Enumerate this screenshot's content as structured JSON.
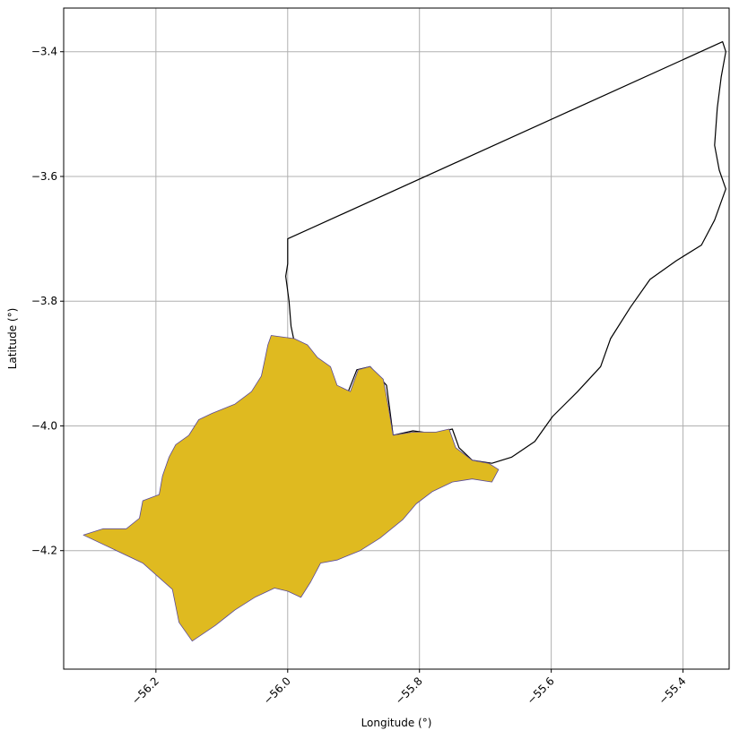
{
  "chart_data": {
    "type": "map",
    "xlabel": "Longitude (°)",
    "ylabel": "Latitude (°)",
    "xlim": [
      -56.34,
      -55.33
    ],
    "ylim": [
      -4.39,
      -3.33
    ],
    "x_ticks": [
      -56.2,
      -56.0,
      -55.8,
      -55.6,
      -55.4
    ],
    "x_tick_labels": [
      "−56.2",
      "−56.0",
      "−55.8",
      "−55.6",
      "−55.4"
    ],
    "y_ticks": [
      -3.4,
      -3.6,
      -3.8,
      -4.0,
      -4.2
    ],
    "y_tick_labels": [
      "−3.4",
      "−3.6",
      "−3.8",
      "−4.0",
      "−4.2"
    ],
    "grid": true,
    "colors": {
      "highlight_fill": "#dfba20",
      "highlight_edge": "#5a4a9a",
      "outline": "#000000",
      "grid": "#b0b0b0"
    },
    "regions": [
      {
        "id": "outlined-region",
        "fill": "none",
        "points": [
          [
            -56.0,
            -3.7
          ],
          [
            -55.34,
            -3.384
          ],
          [
            -55.335,
            -3.4
          ],
          [
            -55.342,
            -3.44
          ],
          [
            -55.348,
            -3.49
          ],
          [
            -55.352,
            -3.55
          ],
          [
            -55.345,
            -3.59
          ],
          [
            -55.335,
            -3.62
          ],
          [
            -55.352,
            -3.67
          ],
          [
            -55.372,
            -3.71
          ],
          [
            -55.41,
            -3.735
          ],
          [
            -55.45,
            -3.765
          ],
          [
            -55.48,
            -3.81
          ],
          [
            -55.51,
            -3.86
          ],
          [
            -55.525,
            -3.905
          ],
          [
            -55.56,
            -3.945
          ],
          [
            -55.598,
            -3.985
          ],
          [
            -55.625,
            -4.025
          ],
          [
            -55.66,
            -4.05
          ],
          [
            -55.69,
            -4.06
          ],
          [
            -55.72,
            -4.055
          ],
          [
            -55.74,
            -4.035
          ],
          [
            -55.75,
            -4.005
          ],
          [
            -55.78,
            -4.012
          ],
          [
            -55.81,
            -4.008
          ],
          [
            -55.84,
            -4.015
          ],
          [
            -55.845,
            -3.975
          ],
          [
            -55.85,
            -3.935
          ],
          [
            -55.875,
            -3.905
          ],
          [
            -55.895,
            -3.91
          ],
          [
            -55.91,
            -3.95
          ],
          [
            -55.94,
            -3.925
          ],
          [
            -55.958,
            -3.905
          ],
          [
            -55.975,
            -3.88
          ],
          [
            -55.99,
            -3.865
          ],
          [
            -55.995,
            -3.84
          ],
          [
            -55.998,
            -3.8
          ],
          [
            -56.003,
            -3.76
          ],
          [
            -56.0,
            -3.74
          ],
          [
            -56.0,
            -3.7
          ]
        ]
      },
      {
        "id": "highlighted-region",
        "fill": "highlight",
        "points": [
          [
            -56.025,
            -3.855
          ],
          [
            -55.99,
            -3.86
          ],
          [
            -55.97,
            -3.87
          ],
          [
            -55.955,
            -3.89
          ],
          [
            -55.935,
            -3.905
          ],
          [
            -55.925,
            -3.935
          ],
          [
            -55.905,
            -3.945
          ],
          [
            -55.893,
            -3.91
          ],
          [
            -55.875,
            -3.905
          ],
          [
            -55.855,
            -3.925
          ],
          [
            -55.847,
            -3.97
          ],
          [
            -55.84,
            -4.015
          ],
          [
            -55.81,
            -4.01
          ],
          [
            -55.775,
            -4.01
          ],
          [
            -55.755,
            -4.005
          ],
          [
            -55.745,
            -4.035
          ],
          [
            -55.72,
            -4.055
          ],
          [
            -55.695,
            -4.06
          ],
          [
            -55.68,
            -4.07
          ],
          [
            -55.69,
            -4.09
          ],
          [
            -55.72,
            -4.085
          ],
          [
            -55.75,
            -4.09
          ],
          [
            -55.78,
            -4.105
          ],
          [
            -55.805,
            -4.125
          ],
          [
            -55.825,
            -4.15
          ],
          [
            -55.86,
            -4.18
          ],
          [
            -55.89,
            -4.2
          ],
          [
            -55.925,
            -4.215
          ],
          [
            -55.95,
            -4.22
          ],
          [
            -55.965,
            -4.25
          ],
          [
            -55.98,
            -4.275
          ],
          [
            -56.0,
            -4.265
          ],
          [
            -56.02,
            -4.26
          ],
          [
            -56.05,
            -4.275
          ],
          [
            -56.08,
            -4.295
          ],
          [
            -56.11,
            -4.32
          ],
          [
            -56.145,
            -4.345
          ],
          [
            -56.165,
            -4.315
          ],
          [
            -56.175,
            -4.262
          ],
          [
            -56.22,
            -4.22
          ],
          [
            -56.31,
            -4.175
          ],
          [
            -56.28,
            -4.165
          ],
          [
            -56.245,
            -4.165
          ],
          [
            -56.225,
            -4.148
          ],
          [
            -56.22,
            -4.12
          ],
          [
            -56.195,
            -4.11
          ],
          [
            -56.19,
            -4.08
          ],
          [
            -56.18,
            -4.05
          ],
          [
            -56.17,
            -4.03
          ],
          [
            -56.15,
            -4.015
          ],
          [
            -56.135,
            -3.99
          ],
          [
            -56.115,
            -3.98
          ],
          [
            -56.08,
            -3.965
          ],
          [
            -56.055,
            -3.945
          ],
          [
            -56.04,
            -3.92
          ],
          [
            -56.035,
            -3.895
          ],
          [
            -56.03,
            -3.87
          ],
          [
            -56.025,
            -3.855
          ]
        ]
      }
    ]
  }
}
